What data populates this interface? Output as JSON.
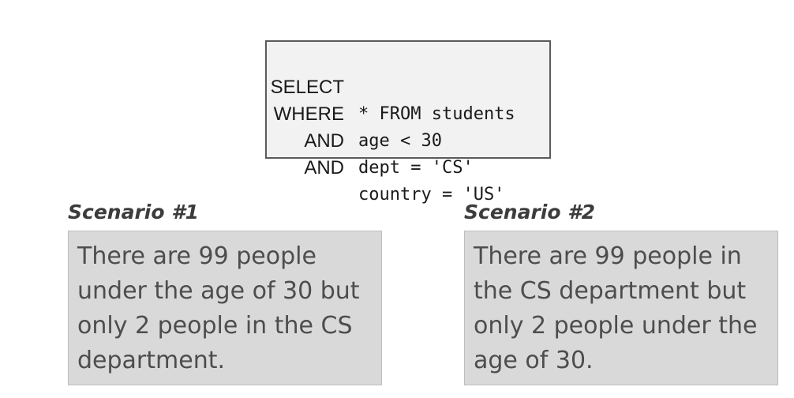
{
  "query": {
    "lines": [
      {
        "keyword": "SELECT",
        "code": "* FROM students"
      },
      {
        "keyword": "WHERE",
        "code": "age < 30"
      },
      {
        "keyword": "AND",
        "code": "dept = 'CS'"
      },
      {
        "keyword": "AND",
        "code": "country = 'US'"
      }
    ]
  },
  "scenarios": [
    {
      "title": "Scenario #1",
      "text": "There are 99 people under the age of 30 but only 2 people in the CS department."
    },
    {
      "title": "Scenario #2",
      "text": "There are 99 people in the CS department but only 2 people under the age of 30."
    }
  ]
}
